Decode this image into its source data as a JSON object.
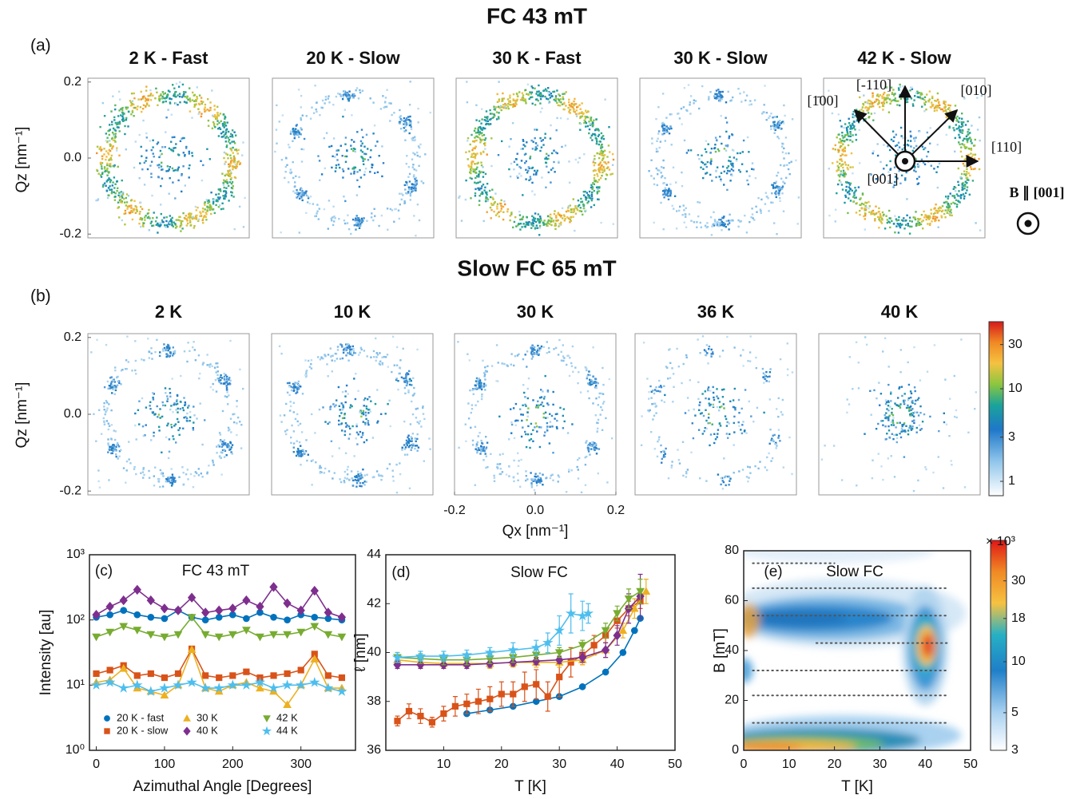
{
  "chart_data": [
    {
      "type": "image-grid",
      "label": "(a)",
      "title": "FC 43 mT",
      "ylabel": "Qz [nm⁻¹]",
      "ylim": [
        -0.21,
        0.21
      ],
      "yticks": [
        -0.2,
        {
          "value": 0,
          "label": "0.0"
        },
        0.2
      ],
      "panels": [
        "2 K - Fast",
        "20 K - Slow",
        "30 K - Fast",
        "30 K - Slow",
        "42 K - Slow"
      ],
      "annotations": [
        "[1̄00]",
        "[-110]",
        "[010]",
        "[110]",
        "[001]"
      ],
      "field": "B ∥ [001]"
    },
    {
      "type": "image-grid",
      "label": "(b)",
      "title": "Slow FC 65 mT",
      "ylabel": "Qz [nm⁻¹]",
      "xlabel": "Qx [nm⁻¹]",
      "ylim": [
        -0.21,
        0.21
      ],
      "yticks": [
        -0.2,
        {
          "value": 0,
          "label": "0.0"
        },
        0.2
      ],
      "xlim": [
        -0.2,
        0.2
      ],
      "xticks": [
        -0.2,
        {
          "value": 0,
          "label": "0.0"
        },
        0.2
      ],
      "panels": [
        "2 K",
        "10 K",
        "30 K",
        "36 K",
        "40 K"
      ],
      "colorbar": {
        "log": true,
        "clim": [
          0.7,
          53
        ],
        "ticks": [
          1,
          3,
          10,
          30
        ]
      }
    },
    {
      "type": "line",
      "label": "(c)",
      "title": "FC 43 mT",
      "xlabel": "Azimuthal Angle [Degrees]",
      "ylabel": "Intensity [au]",
      "ylog": true,
      "xlim": [
        -10,
        380
      ],
      "xticks": [
        0,
        100,
        200,
        300
      ],
      "ylim": [
        1,
        1000
      ],
      "yticks": [
        {
          "value": 1,
          "label": "10⁰"
        },
        {
          "value": 10,
          "label": "10¹"
        },
        {
          "value": 100,
          "label": "10²"
        },
        {
          "value": 1000,
          "label": "10³"
        }
      ],
      "x": [
        0,
        20,
        40,
        60,
        80,
        100,
        120,
        140,
        160,
        180,
        200,
        220,
        240,
        260,
        280,
        300,
        320,
        340,
        360
      ],
      "series": [
        {
          "name": "20 K - fast",
          "color": "#0072bd",
          "marker": "circle",
          "values": [
            110,
            120,
            140,
            120,
            110,
            105,
            140,
            110,
            100,
            110,
            120,
            105,
            130,
            110,
            100,
            120,
            110,
            105,
            100
          ]
        },
        {
          "name": "20 K - slow",
          "color": "#d95319",
          "marker": "square",
          "values": [
            15,
            17,
            20,
            14,
            15,
            13,
            15,
            36,
            14,
            13,
            14,
            16,
            13,
            14,
            15,
            17,
            30,
            14,
            13
          ]
        },
        {
          "name": "30 K",
          "color": "#edb120",
          "marker": "triangle",
          "values": [
            11,
            12,
            18,
            9,
            8,
            7,
            10,
            35,
            9,
            8,
            10,
            11,
            9,
            8,
            5,
            10,
            25,
            9,
            9
          ]
        },
        {
          "name": "40 K",
          "color": "#7e2f8e",
          "marker": "diamond",
          "values": [
            120,
            160,
            200,
            290,
            200,
            150,
            140,
            220,
            130,
            140,
            150,
            200,
            160,
            320,
            180,
            140,
            280,
            130,
            110
          ]
        },
        {
          "name": "42 K",
          "color": "#77ac30",
          "marker": "triangle-down",
          "values": [
            55,
            65,
            80,
            70,
            60,
            55,
            60,
            110,
            60,
            55,
            60,
            70,
            55,
            60,
            60,
            65,
            80,
            60,
            55
          ]
        },
        {
          "name": "44 K",
          "color": "#4dbeee",
          "marker": "star",
          "values": [
            10,
            11,
            9,
            10,
            8,
            9,
            10,
            11,
            9,
            9,
            10,
            10,
            11,
            9,
            10,
            10,
            11,
            9,
            8
          ]
        }
      ]
    },
    {
      "type": "line",
      "label": "(d)",
      "title": "Slow FC",
      "xlabel": "T [K]",
      "ylabel": "ℓ [nm]",
      "xlim": [
        0,
        50
      ],
      "xticks": [
        10,
        20,
        30,
        40,
        50
      ],
      "ylim": [
        36,
        44
      ],
      "yticks": [
        36,
        38,
        40,
        42,
        44
      ],
      "series": [
        {
          "color": "#0072bd",
          "marker": "circle",
          "x": [
            14,
            18,
            22,
            26,
            30,
            34,
            38,
            41,
            43,
            44
          ],
          "values": [
            37.5,
            37.65,
            37.8,
            38,
            38.2,
            38.6,
            39.2,
            40,
            40.9,
            41.4
          ]
        },
        {
          "color": "#d95319",
          "marker": "square",
          "x": [
            2,
            4,
            6,
            8,
            10,
            12,
            14,
            16,
            18,
            20,
            22,
            24,
            26,
            28,
            30,
            32,
            34,
            36,
            38,
            40,
            42,
            44
          ],
          "values": [
            37.2,
            37.6,
            37.4,
            37.15,
            37.5,
            37.8,
            37.9,
            38,
            38.1,
            38.3,
            38.3,
            38.6,
            38.7,
            38.2,
            39,
            39.6,
            39.9,
            40.3,
            40.7,
            41.3,
            41.8,
            42.1
          ],
          "errors": [
            0.2,
            0.3,
            0.3,
            0.2,
            0.3,
            0.4,
            0.4,
            0.5,
            0.5,
            0.5,
            0.5,
            0.6,
            0.6,
            0.6,
            0.8,
            0.6,
            0.4,
            0.4,
            0.3,
            0.3,
            0.3,
            0.3
          ]
        },
        {
          "color": "#edb120",
          "marker": "triangle",
          "x": [
            2,
            6,
            10,
            14,
            18,
            22,
            26,
            30,
            34,
            38,
            41,
            43,
            45
          ],
          "values": [
            39.7,
            39.6,
            39.55,
            39.55,
            39.55,
            39.6,
            39.6,
            39.6,
            39.7,
            40.1,
            40.9,
            41.8,
            42.5
          ],
          "errors": [
            0.2,
            0.2,
            0.2,
            0.2,
            0.2,
            0.2,
            0.2,
            0.2,
            0.2,
            0.3,
            0.3,
            0.4,
            0.5
          ]
        },
        {
          "color": "#7e2f8e",
          "marker": "diamond",
          "x": [
            2,
            6,
            10,
            14,
            18,
            22,
            26,
            30,
            34,
            38,
            40,
            42,
            44
          ],
          "values": [
            39.5,
            39.5,
            39.5,
            39.5,
            39.55,
            39.6,
            39.65,
            39.7,
            39.8,
            40.1,
            40.7,
            41.8,
            42.3
          ],
          "errors": [
            0.15,
            0.15,
            0.15,
            0.15,
            0.15,
            0.15,
            0.15,
            0.15,
            0.2,
            0.3,
            0.4,
            0.6,
            0.9
          ]
        },
        {
          "color": "#77ac30",
          "marker": "triangle-down",
          "x": [
            2,
            6,
            10,
            14,
            18,
            22,
            26,
            30,
            34,
            38,
            40,
            42,
            44
          ],
          "values": [
            39.8,
            39.75,
            39.7,
            39.7,
            39.75,
            39.8,
            39.9,
            40,
            40.3,
            40.9,
            41.6,
            42.2,
            42.5
          ],
          "errors": [
            0.2,
            0.2,
            0.2,
            0.2,
            0.2,
            0.2,
            0.2,
            0.2,
            0.2,
            0.3,
            0.3,
            0.4,
            0.5
          ]
        },
        {
          "color": "#4dbeee",
          "marker": "star",
          "x": [
            2,
            6,
            10,
            14,
            18,
            22,
            26,
            28,
            30,
            32,
            34,
            35
          ],
          "values": [
            39.8,
            39.85,
            39.85,
            39.9,
            40,
            40.1,
            40.2,
            40.4,
            40.9,
            41.6,
            41.5,
            41.6
          ],
          "errors": [
            0.2,
            0.2,
            0.2,
            0.2,
            0.2,
            0.3,
            0.3,
            0.4,
            0.6,
            0.8,
            0.6,
            0.4
          ]
        }
      ]
    },
    {
      "type": "contour",
      "label": "(e)",
      "title": "Slow FC",
      "xlabel": "T [K]",
      "ylabel": "B [mT]",
      "xlim": [
        0,
        50
      ],
      "xticks": [
        0,
        10,
        20,
        30,
        40,
        50
      ],
      "ylim": [
        0,
        80
      ],
      "yticks": [
        0,
        20,
        40,
        60,
        80
      ],
      "scan_fields": [
        {
          "B": 75,
          "T": [
            2,
            20
          ]
        },
        {
          "B": 65,
          "T": [
            2,
            45
          ]
        },
        {
          "B": 54,
          "T": [
            2,
            45
          ]
        },
        {
          "B": 43,
          "T": [
            16,
            45
          ]
        },
        {
          "B": 32,
          "T": [
            2,
            45
          ]
        },
        {
          "B": 22,
          "T": [
            2,
            45
          ]
        },
        {
          "B": 11,
          "T": [
            2,
            45
          ]
        }
      ],
      "colorbar": {
        "log": true,
        "clim": [
          3,
          52
        ],
        "ticks": [
          3,
          5,
          10,
          18,
          30
        ],
        "label": "× 10³"
      }
    }
  ]
}
